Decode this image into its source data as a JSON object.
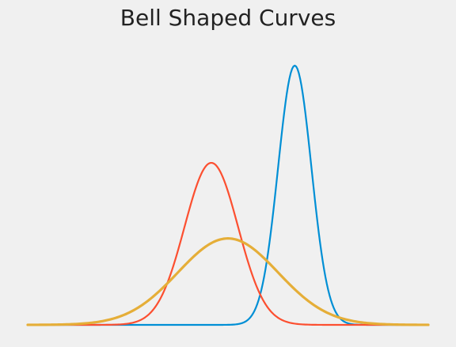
{
  "chart_data": {
    "type": "line",
    "title": "Bell Shaped Curves",
    "xlabel": "",
    "ylabel": "",
    "xlim": [
      -6,
      6
    ],
    "ylim": [
      0,
      0.9
    ],
    "grid": false,
    "axes_visible": false,
    "background": "#f0f0f0",
    "series": [
      {
        "mean": 2.0,
        "std": 0.5,
        "color": "#008fd5"
      },
      {
        "mean": -0.5,
        "std": 0.8,
        "color": "#fc4f30"
      },
      {
        "mean": 0.0,
        "std": 1.5,
        "color": "#e5ae38"
      }
    ]
  }
}
